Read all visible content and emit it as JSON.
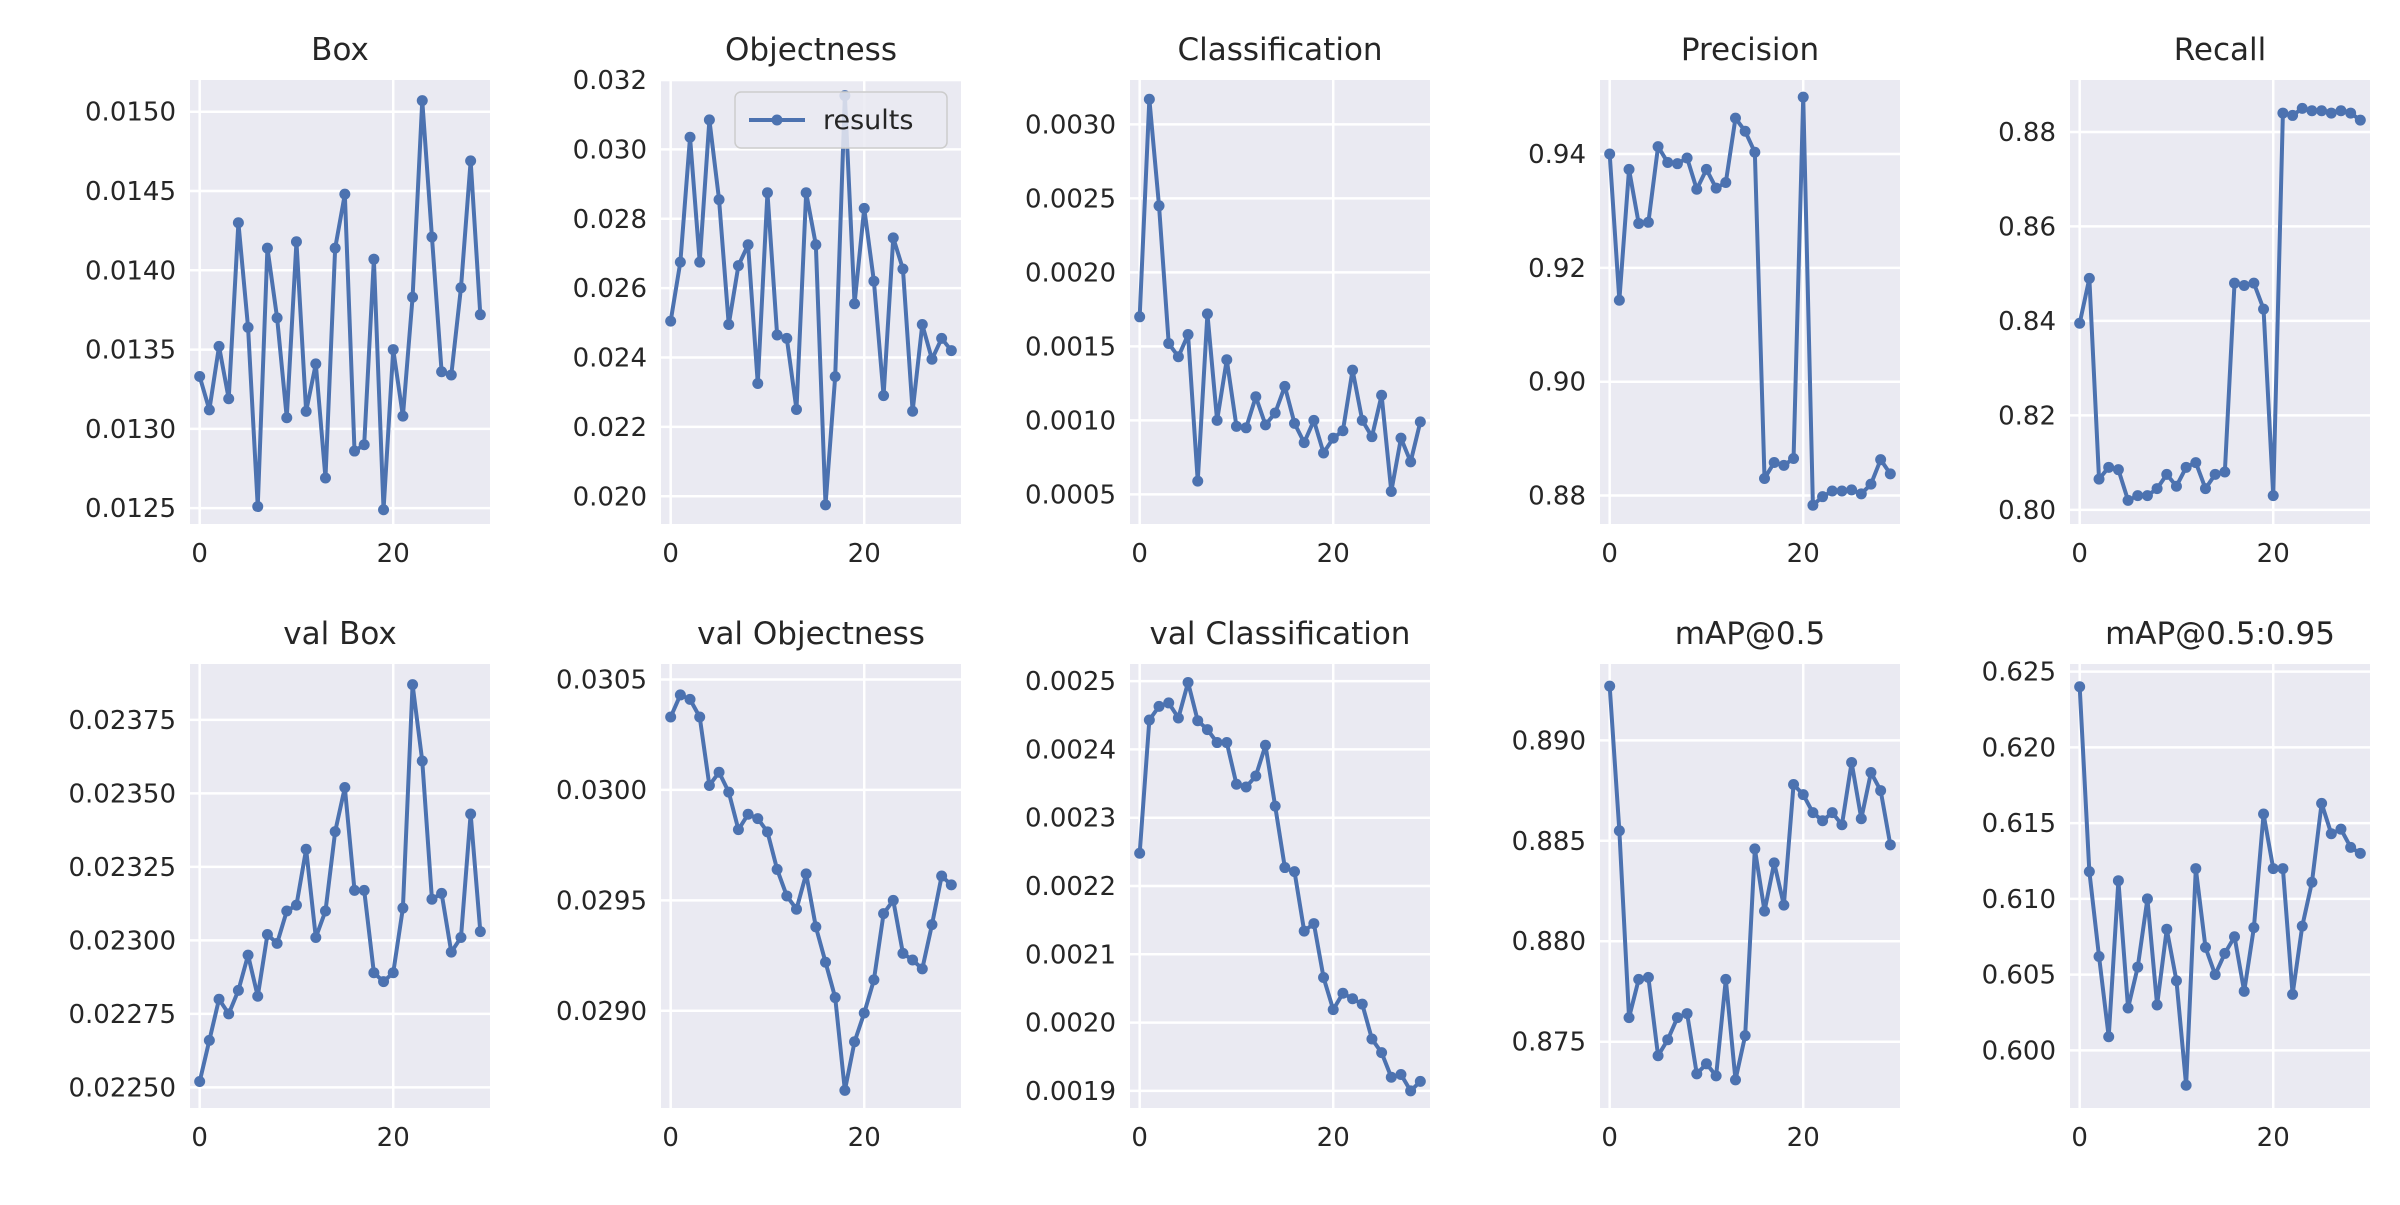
{
  "style": {
    "axes_bg": "#EAEAF2",
    "grid": "#FFFFFF",
    "line": "#4C72B0",
    "text": "#262626",
    "background": "#FFFFFF"
  },
  "chart_data": [
    {
      "type": "line",
      "title": "Box",
      "xlim": [
        -1,
        30
      ],
      "ylim": [
        0.0124,
        0.0152
      ],
      "xticks": [
        0,
        20
      ],
      "xtick_labels": [
        "0",
        "20"
      ],
      "yticks": [
        0.0125,
        0.013,
        0.0135,
        0.014,
        0.0145,
        0.015
      ],
      "ytick_labels": [
        "0.0125",
        "0.0130",
        "0.0135",
        "0.0140",
        "0.0145",
        "0.0150"
      ],
      "grid": true,
      "series": [
        {
          "marker": "circle",
          "x": [
            0,
            1,
            2,
            3,
            4,
            5,
            6,
            7,
            8,
            9,
            10,
            11,
            12,
            13,
            14,
            15,
            16,
            17,
            18,
            19,
            20,
            21,
            22,
            23,
            24,
            25,
            26,
            27,
            28,
            29
          ],
          "y": [
            0.01333,
            0.01312,
            0.01352,
            0.01319,
            0.0143,
            0.01364,
            0.01251,
            0.01414,
            0.0137,
            0.01307,
            0.01418,
            0.01311,
            0.01341,
            0.01269,
            0.01414,
            0.01448,
            0.01286,
            0.0129,
            0.01407,
            0.01249,
            0.0135,
            0.01308,
            0.01383,
            0.01507,
            0.01421,
            0.01336,
            0.01334,
            0.01389,
            0.01469,
            0.01372
          ]
        }
      ]
    },
    {
      "type": "line",
      "title": "Objectness",
      "xlim": [
        -1,
        30
      ],
      "ylim": [
        0.0192,
        0.032
      ],
      "xticks": [
        0,
        20
      ],
      "xtick_labels": [
        "0",
        "20"
      ],
      "yticks": [
        0.02,
        0.022,
        0.024,
        0.026,
        0.028,
        0.03,
        0.032
      ],
      "ytick_labels": [
        "0.020",
        "0.022",
        "0.024",
        "0.026",
        "0.028",
        "0.030",
        "0.032"
      ],
      "grid": true,
      "legend": {
        "position": "top-right",
        "entries": [
          "results"
        ]
      },
      "series": [
        {
          "name": "results",
          "marker": "circle",
          "x": [
            0,
            1,
            2,
            3,
            4,
            5,
            6,
            7,
            8,
            9,
            10,
            11,
            12,
            13,
            14,
            15,
            16,
            17,
            18,
            19,
            20,
            21,
            22,
            23,
            24,
            25,
            26,
            27,
            28,
            29
          ],
          "y": [
            0.02505,
            0.02675,
            0.03035,
            0.02675,
            0.03085,
            0.02855,
            0.02495,
            0.02665,
            0.02725,
            0.02325,
            0.02875,
            0.02465,
            0.02455,
            0.0225,
            0.02875,
            0.02725,
            0.01975,
            0.02345,
            0.03155,
            0.02555,
            0.0283,
            0.0262,
            0.0229,
            0.02745,
            0.02655,
            0.02245,
            0.02495,
            0.02395,
            0.02455,
            0.0242
          ]
        }
      ]
    },
    {
      "type": "line",
      "title": "Classification",
      "xlim": [
        -1,
        30
      ],
      "ylim": [
        0.0003,
        0.0033
      ],
      "xticks": [
        0,
        20
      ],
      "xtick_labels": [
        "0",
        "20"
      ],
      "yticks": [
        0.0005,
        0.001,
        0.0015,
        0.002,
        0.0025,
        0.003
      ],
      "ytick_labels": [
        "0.0005",
        "0.0010",
        "0.0015",
        "0.0020",
        "0.0025",
        "0.0030"
      ],
      "grid": true,
      "series": [
        {
          "marker": "circle",
          "x": [
            0,
            1,
            2,
            3,
            4,
            5,
            6,
            7,
            8,
            9,
            10,
            11,
            12,
            13,
            14,
            15,
            16,
            17,
            18,
            19,
            20,
            21,
            22,
            23,
            24,
            25,
            26,
            27,
            28,
            29
          ],
          "y": [
            0.0017,
            0.00317,
            0.00245,
            0.00152,
            0.00143,
            0.00158,
            0.00059,
            0.00172,
            0.001,
            0.00141,
            0.00096,
            0.00095,
            0.00116,
            0.00097,
            0.00105,
            0.00123,
            0.00098,
            0.00085,
            0.001,
            0.00078,
            0.00088,
            0.00093,
            0.00134,
            0.001,
            0.00089,
            0.00117,
            0.00052,
            0.00088,
            0.00072,
            0.00099
          ]
        }
      ]
    },
    {
      "type": "line",
      "title": "Precision",
      "xlim": [
        -1,
        30
      ],
      "ylim": [
        0.875,
        0.953
      ],
      "xticks": [
        0,
        20
      ],
      "xtick_labels": [
        "0",
        "20"
      ],
      "yticks": [
        0.88,
        0.9,
        0.92,
        0.94
      ],
      "ytick_labels": [
        "0.88",
        "0.90",
        "0.92",
        "0.94"
      ],
      "grid": true,
      "series": [
        {
          "marker": "circle",
          "x": [
            0,
            1,
            2,
            3,
            4,
            5,
            6,
            7,
            8,
            9,
            10,
            11,
            12,
            13,
            14,
            15,
            16,
            17,
            18,
            19,
            20,
            21,
            22,
            23,
            24,
            25,
            26,
            27,
            28,
            29
          ],
          "y": [
            0.94,
            0.9143,
            0.9373,
            0.9278,
            0.928,
            0.9413,
            0.9385,
            0.9383,
            0.9393,
            0.9338,
            0.9373,
            0.934,
            0.935,
            0.9463,
            0.944,
            0.9403,
            0.883,
            0.8858,
            0.8853,
            0.8865,
            0.95,
            0.8783,
            0.8798,
            0.8808,
            0.8808,
            0.881,
            0.8803,
            0.882,
            0.8863,
            0.8838
          ]
        }
      ]
    },
    {
      "type": "line",
      "title": "Recall",
      "xlim": [
        -1,
        30
      ],
      "ylim": [
        0.797,
        0.891
      ],
      "xticks": [
        0,
        20
      ],
      "xtick_labels": [
        "0",
        "20"
      ],
      "yticks": [
        0.8,
        0.82,
        0.84,
        0.86,
        0.88
      ],
      "ytick_labels": [
        "0.80",
        "0.82",
        "0.84",
        "0.86",
        "0.88"
      ],
      "grid": true,
      "series": [
        {
          "marker": "circle",
          "x": [
            0,
            1,
            2,
            3,
            4,
            5,
            6,
            7,
            8,
            9,
            10,
            11,
            12,
            13,
            14,
            15,
            16,
            17,
            18,
            19,
            20,
            21,
            22,
            23,
            24,
            25,
            26,
            27,
            28,
            29
          ],
          "y": [
            0.8395,
            0.849,
            0.8065,
            0.809,
            0.8085,
            0.802,
            0.803,
            0.803,
            0.8045,
            0.8075,
            0.805,
            0.809,
            0.81,
            0.8045,
            0.8075,
            0.808,
            0.848,
            0.8475,
            0.848,
            0.8425,
            0.803,
            0.884,
            0.8835,
            0.885,
            0.8845,
            0.8845,
            0.884,
            0.8845,
            0.884,
            0.8825
          ]
        }
      ]
    },
    {
      "type": "line",
      "title": "val Box",
      "xlim": [
        -1,
        30
      ],
      "ylim": [
        0.02243,
        0.02394
      ],
      "xticks": [
        0,
        20
      ],
      "xtick_labels": [
        "0",
        "20"
      ],
      "yticks": [
        0.0225,
        0.02275,
        0.023,
        0.02325,
        0.0235,
        0.02375
      ],
      "ytick_labels": [
        "0.02250",
        "0.02275",
        "0.02300",
        "0.02325",
        "0.02350",
        "0.02375"
      ],
      "grid": true,
      "series": [
        {
          "marker": "circle",
          "x": [
            0,
            1,
            2,
            3,
            4,
            5,
            6,
            7,
            8,
            9,
            10,
            11,
            12,
            13,
            14,
            15,
            16,
            17,
            18,
            19,
            20,
            21,
            22,
            23,
            24,
            25,
            26,
            27,
            28,
            29
          ],
          "y": [
            0.02252,
            0.02266,
            0.0228,
            0.02275,
            0.02283,
            0.02295,
            0.02281,
            0.02302,
            0.02299,
            0.0231,
            0.02312,
            0.02331,
            0.02301,
            0.0231,
            0.02337,
            0.02352,
            0.02317,
            0.02317,
            0.02289,
            0.02286,
            0.02289,
            0.02311,
            0.02387,
            0.02361,
            0.02314,
            0.02316,
            0.02296,
            0.02301,
            0.02343,
            0.02303
          ]
        }
      ]
    },
    {
      "type": "line",
      "title": "val Objectness",
      "xlim": [
        -1,
        30
      ],
      "ylim": [
        0.02856,
        0.03057
      ],
      "xticks": [
        0,
        20
      ],
      "xtick_labels": [
        "0",
        "20"
      ],
      "yticks": [
        0.029,
        0.0295,
        0.03,
        0.0305
      ],
      "ytick_labels": [
        "0.0290",
        "0.0295",
        "0.0300",
        "0.0305"
      ],
      "grid": true,
      "series": [
        {
          "marker": "circle",
          "x": [
            0,
            1,
            2,
            3,
            4,
            5,
            6,
            7,
            8,
            9,
            10,
            11,
            12,
            13,
            14,
            15,
            16,
            17,
            18,
            19,
            20,
            21,
            22,
            23,
            24,
            25,
            26,
            27,
            28,
            29
          ],
          "y": [
            0.03033,
            0.03043,
            0.03041,
            0.03033,
            0.03002,
            0.03008,
            0.02999,
            0.02982,
            0.02989,
            0.02987,
            0.02981,
            0.02964,
            0.02952,
            0.02946,
            0.02962,
            0.02938,
            0.02922,
            0.02906,
            0.02864,
            0.02886,
            0.02899,
            0.02914,
            0.02944,
            0.0295,
            0.02926,
            0.02923,
            0.02919,
            0.02939,
            0.02961,
            0.02957
          ]
        }
      ]
    },
    {
      "type": "line",
      "title": "val Classification",
      "xlim": [
        -1,
        30
      ],
      "ylim": [
        0.001875,
        0.002525
      ],
      "xticks": [
        0,
        20
      ],
      "xtick_labels": [
        "0",
        "20"
      ],
      "yticks": [
        0.0019,
        0.002,
        0.0021,
        0.0022,
        0.0023,
        0.0024,
        0.0025
      ],
      "ytick_labels": [
        "0.0019",
        "0.0020",
        "0.0021",
        "0.0022",
        "0.0023",
        "0.0024",
        "0.0025"
      ],
      "grid": true,
      "series": [
        {
          "marker": "circle",
          "x": [
            0,
            1,
            2,
            3,
            4,
            5,
            6,
            7,
            8,
            9,
            10,
            11,
            12,
            13,
            14,
            15,
            16,
            17,
            18,
            19,
            20,
            21,
            22,
            23,
            24,
            25,
            26,
            27,
            28,
            29
          ],
          "y": [
            0.002248,
            0.002443,
            0.002463,
            0.002468,
            0.002446,
            0.002498,
            0.002442,
            0.002429,
            0.00241,
            0.00241,
            0.002349,
            0.002345,
            0.002361,
            0.002406,
            0.002317,
            0.002227,
            0.002221,
            0.002134,
            0.002145,
            0.002066,
            0.002019,
            0.002043,
            0.002035,
            0.002027,
            0.001976,
            0.001956,
            0.00192,
            0.001924,
            0.0019,
            0.001914
          ]
        }
      ]
    },
    {
      "type": "line",
      "title": "mAP@0.5",
      "xlim": [
        -1,
        30
      ],
      "ylim": [
        0.8717,
        0.8938
      ],
      "xticks": [
        0,
        20
      ],
      "xtick_labels": [
        "0",
        "20"
      ],
      "yticks": [
        0.875,
        0.88,
        0.885,
        0.89
      ],
      "ytick_labels": [
        "0.875",
        "0.880",
        "0.885",
        "0.890"
      ],
      "grid": true,
      "series": [
        {
          "marker": "circle",
          "x": [
            0,
            1,
            2,
            3,
            4,
            5,
            6,
            7,
            8,
            9,
            10,
            11,
            12,
            13,
            14,
            15,
            16,
            17,
            18,
            19,
            20,
            21,
            22,
            23,
            24,
            25,
            26,
            27,
            28,
            29
          ],
          "y": [
            0.8927,
            0.8855,
            0.8762,
            0.8781,
            0.8782,
            0.8743,
            0.8751,
            0.8762,
            0.8764,
            0.8734,
            0.8739,
            0.8733,
            0.8781,
            0.8731,
            0.8753,
            0.8846,
            0.8815,
            0.8839,
            0.8818,
            0.8878,
            0.8873,
            0.8864,
            0.886,
            0.8864,
            0.8858,
            0.8889,
            0.8861,
            0.8884,
            0.8875,
            0.8848
          ]
        }
      ]
    },
    {
      "type": "line",
      "title": "mAP@0.5:0.95",
      "xlim": [
        -1,
        30
      ],
      "ylim": [
        0.5962,
        0.6255
      ],
      "xticks": [
        0,
        20
      ],
      "xtick_labels": [
        "0",
        "20"
      ],
      "yticks": [
        0.6,
        0.605,
        0.61,
        0.615,
        0.62,
        0.625
      ],
      "ytick_labels": [
        "0.600",
        "0.605",
        "0.610",
        "0.615",
        "0.620",
        "0.625"
      ],
      "grid": true,
      "series": [
        {
          "marker": "circle",
          "x": [
            0,
            1,
            2,
            3,
            4,
            5,
            6,
            7,
            8,
            9,
            10,
            11,
            12,
            13,
            14,
            15,
            16,
            17,
            18,
            19,
            20,
            21,
            22,
            23,
            24,
            25,
            26,
            27,
            28,
            29
          ],
          "y": [
            0.624,
            0.6118,
            0.6062,
            0.6009,
            0.6112,
            0.6028,
            0.6055,
            0.61,
            0.603,
            0.608,
            0.6046,
            0.5977,
            0.612,
            0.6068,
            0.605,
            0.6064,
            0.6075,
            0.6039,
            0.6081,
            0.6156,
            0.612,
            0.612,
            0.6037,
            0.6082,
            0.6111,
            0.6163,
            0.6143,
            0.6146,
            0.6134,
            0.613
          ]
        }
      ]
    }
  ]
}
